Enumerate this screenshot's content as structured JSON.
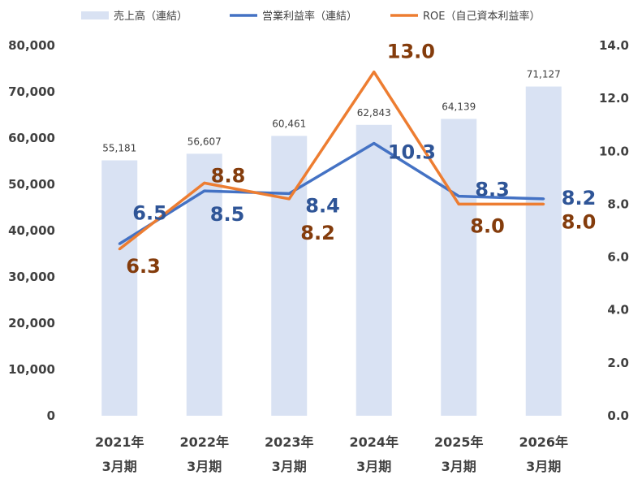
{
  "chart_data": {
    "type": "bar",
    "categories": [
      [
        "2021年",
        "3月期"
      ],
      [
        "2022年",
        "3月期"
      ],
      [
        "2023年",
        "3月期"
      ],
      [
        "2024年",
        "3月期"
      ],
      [
        "2025年",
        "3月期"
      ],
      [
        "2026年",
        "3月期"
      ]
    ],
    "series": [
      {
        "name": "売上高（連結）",
        "type": "bar",
        "axis": "left",
        "color": "#d9e2f3",
        "values": [
          55181,
          56607,
          60461,
          62843,
          64139,
          71127
        ],
        "labels": [
          "55,181",
          "56,607",
          "60,461",
          "62,843",
          "64,139",
          "71,127"
        ]
      },
      {
        "name": "営業利益率（連結）",
        "type": "line",
        "axis": "right",
        "color": "#4472c4",
        "label_color": "#2f5597",
        "values": [
          6.5,
          8.5,
          8.4,
          10.3,
          8.3,
          8.2
        ],
        "labels": [
          "6.5",
          "8.5",
          "8.4",
          "10.3",
          "8.3",
          "8.2"
        ]
      },
      {
        "name": "ROE（自己資本利益率）",
        "type": "line",
        "axis": "right",
        "color": "#ed7d31",
        "label_color": "#843c0c",
        "values": [
          6.3,
          8.8,
          8.2,
          13.0,
          8.0,
          8.0
        ],
        "labels": [
          "6.3",
          "8.8",
          "8.2",
          "13.0",
          "8.0",
          "8.0"
        ]
      }
    ],
    "y_left": {
      "min": 0,
      "max": 80000,
      "ticks": [
        "0",
        "10,000",
        "20,000",
        "30,000",
        "40,000",
        "50,000",
        "60,000",
        "70,000",
        "80,000"
      ]
    },
    "y_right": {
      "min": 0,
      "max": 14,
      "ticks": [
        "0.0",
        "2.0",
        "4.0",
        "6.0",
        "8.0",
        "10.0",
        "12.0",
        "14.0"
      ]
    },
    "legend": "top",
    "grid": false
  }
}
